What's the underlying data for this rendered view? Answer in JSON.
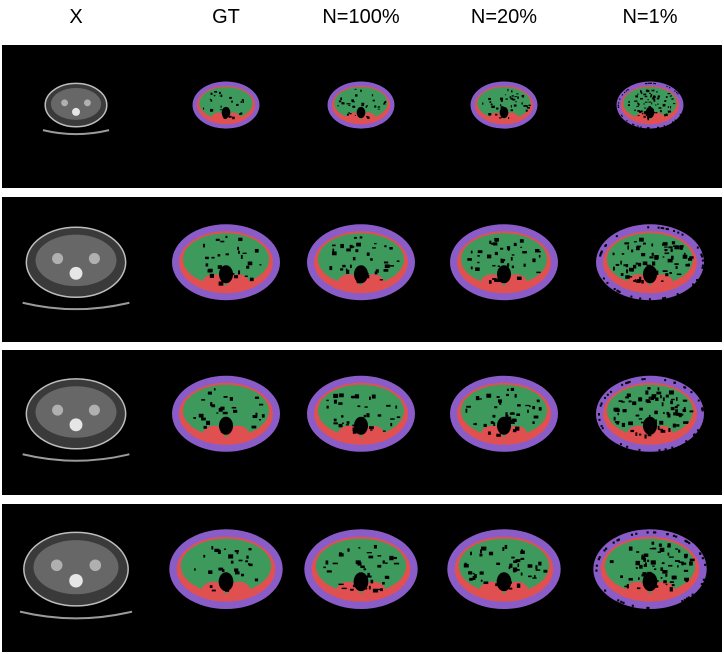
{
  "columns": [
    {
      "label": "X"
    },
    {
      "label": "GT"
    },
    {
      "label": "N=100%"
    },
    {
      "label": "N=20%"
    },
    {
      "label": "N=1%"
    }
  ],
  "rows": [
    {
      "panels": [
        "ct-scan",
        "segmentation-gt",
        "segmentation-n100",
        "segmentation-n20",
        "segmentation-n1"
      ]
    },
    {
      "panels": [
        "ct-scan",
        "segmentation-gt",
        "segmentation-n100",
        "segmentation-n20",
        "segmentation-n1"
      ]
    },
    {
      "panels": [
        "ct-scan",
        "segmentation-gt",
        "segmentation-n100",
        "segmentation-n20",
        "segmentation-n1"
      ]
    },
    {
      "panels": [
        "ct-scan",
        "segmentation-gt",
        "segmentation-n100",
        "segmentation-n20",
        "segmentation-n1"
      ]
    }
  ],
  "colors": {
    "background": "#000000",
    "subcutaneous_fat": "#8a5cc8",
    "muscle": "#e05050",
    "visceral": "#3e9a5c",
    "ct_tissue": "#8c8c8c",
    "ct_bone": "#e6e6e6"
  }
}
